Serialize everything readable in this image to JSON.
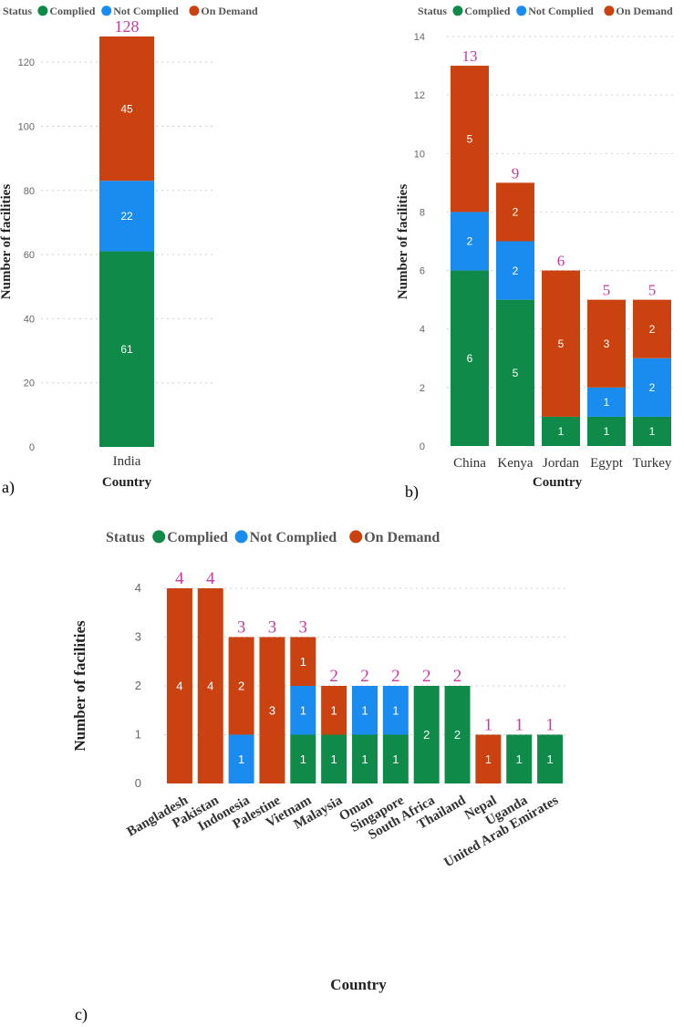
{
  "colors": {
    "complied": "#108a49",
    "not_complied": "#1a8cf0",
    "on_demand": "#c9420f",
    "total_label": "#c73b9e"
  },
  "legend": {
    "title": "Status",
    "items": [
      "Complied",
      "Not Complied",
      "On Demand"
    ]
  },
  "chart_data": [
    {
      "panel": "a)",
      "type": "bar",
      "stacked": true,
      "categories": [
        "India"
      ],
      "series": [
        {
          "name": "Complied",
          "values": [
            61
          ]
        },
        {
          "name": "Not Complied",
          "values": [
            22
          ]
        },
        {
          "name": "On Demand",
          "values": [
            45
          ]
        }
      ],
      "totals": [
        128
      ],
      "xlabel": "Country",
      "ylabel": "Number of facilities",
      "ylim": [
        0,
        128
      ],
      "yticks": [
        0,
        20,
        40,
        60,
        80,
        100,
        120
      ],
      "grid": true,
      "legend_position": "top-left"
    },
    {
      "panel": "b)",
      "type": "bar",
      "stacked": true,
      "categories": [
        "China",
        "Kenya",
        "Jordan",
        "Egypt",
        "Turkey"
      ],
      "series": [
        {
          "name": "Complied",
          "values": [
            6,
            5,
            1,
            1,
            1
          ]
        },
        {
          "name": "Not Complied",
          "values": [
            2,
            2,
            0,
            1,
            2
          ]
        },
        {
          "name": "On Demand",
          "values": [
            5,
            2,
            5,
            3,
            2
          ]
        }
      ],
      "totals": [
        13,
        9,
        6,
        5,
        5
      ],
      "xlabel": "Country",
      "ylabel": "Number of facilities",
      "ylim": [
        0,
        14
      ],
      "yticks": [
        0,
        2,
        4,
        6,
        8,
        10,
        12,
        14
      ],
      "grid": true,
      "legend_position": "top-left"
    },
    {
      "panel": "c)",
      "type": "bar",
      "stacked": true,
      "categories": [
        "Bangladesh",
        "Pakistan",
        "Indonesia",
        "Palestine",
        "Vietnam",
        "Malaysia",
        "Oman",
        "Singapore",
        "South Africa",
        "Thailand",
        "Nepal",
        "Uganda",
        "United Arab Emirates"
      ],
      "series": [
        {
          "name": "Complied",
          "values": [
            0,
            0,
            0,
            0,
            1,
            1,
            1,
            1,
            2,
            2,
            0,
            1,
            1
          ]
        },
        {
          "name": "Not Complied",
          "values": [
            0,
            0,
            1,
            0,
            1,
            0,
            1,
            1,
            0,
            0,
            0,
            0,
            0
          ]
        },
        {
          "name": "On Demand",
          "values": [
            4,
            4,
            2,
            3,
            1,
            1,
            0,
            0,
            0,
            0,
            1,
            0,
            0
          ]
        }
      ],
      "totals": [
        4,
        4,
        3,
        3,
        3,
        2,
        2,
        2,
        2,
        2,
        1,
        1,
        1
      ],
      "xlabel": "Country",
      "ylabel": "Number of facilities",
      "ylim": [
        0,
        4
      ],
      "yticks": [
        0,
        1,
        2,
        3,
        4
      ],
      "grid": true,
      "legend_position": "top-center"
    }
  ]
}
